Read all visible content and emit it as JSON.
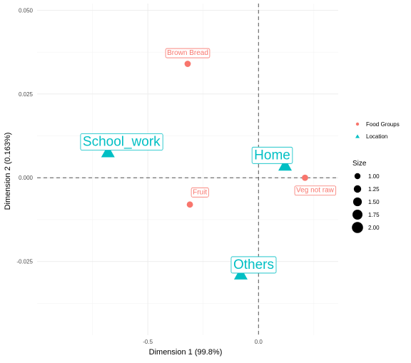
{
  "chart_data": {
    "type": "scatter",
    "xlabel": "Dimension 1 (99.8%)",
    "ylabel": "Dimension 2 (0.163%)",
    "xlim": [
      -1.0,
      0.36
    ],
    "ylim": [
      -0.047,
      0.052
    ],
    "x_ticks": [
      {
        "value": -0.5,
        "label": "-0.5"
      },
      {
        "value": 0.0,
        "label": "0.0"
      }
    ],
    "y_ticks": [
      {
        "value": -0.025,
        "label": "-0.025"
      },
      {
        "value": 0.0,
        "label": "0.000"
      },
      {
        "value": 0.025,
        "label": "0.025"
      },
      {
        "value": 0.05,
        "label": "0.050"
      }
    ],
    "reference_lines": {
      "x": 0,
      "y": 0
    },
    "grid": true,
    "series": [
      {
        "name": "Food Groups",
        "shape": "circle",
        "color": "#F8766D",
        "points": [
          {
            "label": "Brown Bread",
            "x": -0.32,
            "y": 0.034,
            "size": 1.0
          },
          {
            "label": "Fruit",
            "x": -0.31,
            "y": -0.008,
            "size": 1.0
          },
          {
            "label": "Veg not raw",
            "x": 0.21,
            "y": 0.0,
            "size": 1.0
          }
        ]
      },
      {
        "name": "Location",
        "shape": "triangle",
        "color": "#00BFC4",
        "points": [
          {
            "label": "School_work",
            "x": -0.68,
            "y": 0.0075,
            "size": 2.0
          },
          {
            "label": "Home",
            "x": 0.12,
            "y": 0.0035,
            "size": 2.0
          },
          {
            "label": "Others",
            "x": -0.08,
            "y": -0.029,
            "size": 2.0
          }
        ]
      }
    ],
    "legend": {
      "placement": "right",
      "color_entries": [
        "Food Groups",
        "Location"
      ],
      "size_title": "Size",
      "size_entries": [
        "1.00",
        "1.25",
        "1.50",
        "1.75",
        "2.00"
      ]
    }
  }
}
